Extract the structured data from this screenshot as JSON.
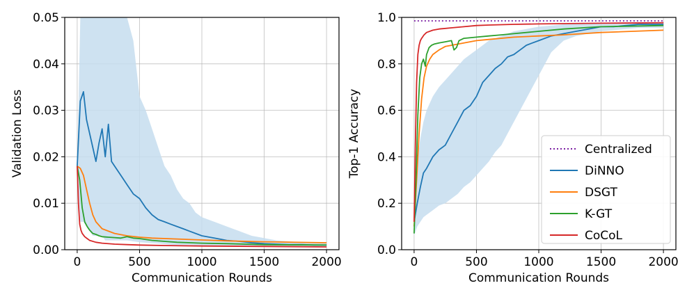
{
  "chart_data": [
    {
      "type": "line",
      "xlabel": "Communication Rounds",
      "ylabel": "Validation Loss",
      "xlim": [
        -100,
        2100
      ],
      "ylim": [
        0,
        0.05
      ],
      "xticks": [
        0,
        500,
        1000,
        1500,
        2000
      ],
      "xtick_labels": [
        "0",
        "500",
        "1000",
        "1500",
        "2000"
      ],
      "yticks": [
        0,
        0.01,
        0.02,
        0.03,
        0.04,
        0.05
      ],
      "ytick_labels": [
        "0.00",
        "0.01",
        "0.02",
        "0.03",
        "0.04",
        "0.05"
      ],
      "grid": true,
      "series": [
        {
          "name": "DiNNO",
          "color": "#1f77b4",
          "x": [
            0,
            25,
            50,
            75,
            100,
            125,
            150,
            175,
            200,
            225,
            250,
            275,
            300,
            350,
            400,
            450,
            500,
            550,
            600,
            650,
            700,
            750,
            800,
            850,
            900,
            950,
            1000,
            1100,
            1200,
            1300,
            1400,
            1500,
            1600,
            1700,
            1800,
            1900,
            2000
          ],
          "y": [
            0.018,
            0.032,
            0.034,
            0.028,
            0.025,
            0.022,
            0.019,
            0.023,
            0.026,
            0.02,
            0.027,
            0.019,
            0.018,
            0.016,
            0.014,
            0.012,
            0.011,
            0.009,
            0.0075,
            0.0065,
            0.006,
            0.0055,
            0.005,
            0.0045,
            0.004,
            0.0035,
            0.003,
            0.0025,
            0.002,
            0.0018,
            0.0015,
            0.0013,
            0.0012,
            0.0011,
            0.0011,
            0.001,
            0.001
          ],
          "band_upper": [
            0.018,
            0.05,
            0.05,
            0.05,
            0.05,
            0.05,
            0.05,
            0.05,
            0.05,
            0.05,
            0.05,
            0.05,
            0.05,
            0.05,
            0.05,
            0.045,
            0.033,
            0.03,
            0.026,
            0.022,
            0.018,
            0.016,
            0.013,
            0.011,
            0.01,
            0.008,
            0.007,
            0.006,
            0.005,
            0.004,
            0.003,
            0.0025,
            0.002,
            0.0018,
            0.0016,
            0.0015,
            0.0015
          ],
          "band_lower": [
            0.018,
            0.006,
            0.006,
            0.005,
            0.004,
            0.003,
            0.003,
            0.003,
            0.003,
            0.002,
            0.002,
            0.002,
            0.002,
            0.002,
            0.002,
            0.0018,
            0.0016,
            0.0015,
            0.0014,
            0.0013,
            0.0012,
            0.0011,
            0.001,
            0.001,
            0.001,
            0.0009,
            0.0009,
            0.0008,
            0.0008,
            0.0008,
            0.0007,
            0.0007,
            0.0007,
            0.0007,
            0.0007,
            0.0007,
            0.0007
          ]
        },
        {
          "name": "DSGT",
          "color": "#ff7f0e",
          "x": [
            0,
            25,
            50,
            75,
            100,
            125,
            150,
            200,
            300,
            400,
            500,
            600,
            800,
            1000,
            1200,
            1500,
            2000
          ],
          "y": [
            0.018,
            0.0175,
            0.016,
            0.013,
            0.01,
            0.0075,
            0.006,
            0.0045,
            0.0035,
            0.003,
            0.0027,
            0.0025,
            0.0023,
            0.0021,
            0.0019,
            0.0017,
            0.0015
          ]
        },
        {
          "name": "K-GT",
          "color": "#2ca02c",
          "x": [
            0,
            20,
            40,
            60,
            80,
            100,
            125,
            150,
            175,
            200,
            250,
            300,
            350,
            400,
            450,
            500,
            600,
            700,
            800,
            1000,
            1200,
            1500,
            2000
          ],
          "y": [
            0.018,
            0.015,
            0.009,
            0.006,
            0.005,
            0.0042,
            0.0035,
            0.0033,
            0.003,
            0.0028,
            0.0027,
            0.0026,
            0.0025,
            0.0028,
            0.0025,
            0.0024,
            0.002,
            0.0018,
            0.0016,
            0.0014,
            0.0013,
            0.0011,
            0.001
          ]
        },
        {
          "name": "CoCoL",
          "color": "#d62728",
          "x": [
            0,
            10,
            20,
            30,
            40,
            60,
            80,
            100,
            150,
            200,
            300,
            400,
            500,
            700,
            1000,
            1500,
            2000
          ],
          "y": [
            0.018,
            0.01,
            0.0055,
            0.0042,
            0.0035,
            0.0028,
            0.0024,
            0.002,
            0.0016,
            0.0014,
            0.0012,
            0.0011,
            0.001,
            0.0009,
            0.0008,
            0.0007,
            0.0006
          ]
        }
      ]
    },
    {
      "type": "line",
      "xlabel": "Communication Rounds",
      "ylabel": "Top-1 Accuracy",
      "xlim": [
        -100,
        2100
      ],
      "ylim": [
        0,
        1.0
      ],
      "xticks": [
        0,
        500,
        1000,
        1500,
        2000
      ],
      "xtick_labels": [
        "0",
        "500",
        "1000",
        "1500",
        "2000"
      ],
      "yticks": [
        0,
        0.2,
        0.4,
        0.6,
        0.8,
        1.0
      ],
      "ytick_labels": [
        "0.0",
        "0.2",
        "0.4",
        "0.6",
        "0.8",
        "1.0"
      ],
      "grid": true,
      "legend_position": "lower-right",
      "series": [
        {
          "name": "Centralized",
          "color": "#7b1fa2",
          "dashed": true,
          "x": [
            0,
            2000
          ],
          "y": [
            0.985,
            0.985
          ]
        },
        {
          "name": "DiNNO",
          "color": "#1f77b4",
          "x": [
            0,
            25,
            50,
            75,
            100,
            150,
            200,
            250,
            300,
            350,
            400,
            450,
            500,
            550,
            600,
            650,
            700,
            750,
            800,
            850,
            900,
            950,
            1000,
            1100,
            1200,
            1300,
            1400,
            1500,
            1600,
            1700,
            1800,
            1900,
            2000
          ],
          "y": [
            0.12,
            0.2,
            0.27,
            0.33,
            0.35,
            0.4,
            0.43,
            0.45,
            0.5,
            0.55,
            0.6,
            0.62,
            0.66,
            0.72,
            0.75,
            0.78,
            0.8,
            0.83,
            0.84,
            0.86,
            0.88,
            0.89,
            0.9,
            0.92,
            0.93,
            0.94,
            0.95,
            0.96,
            0.96,
            0.965,
            0.97,
            0.97,
            0.97
          ],
          "band_upper": [
            0.15,
            0.38,
            0.48,
            0.55,
            0.6,
            0.66,
            0.7,
            0.73,
            0.76,
            0.79,
            0.82,
            0.84,
            0.86,
            0.88,
            0.9,
            0.91,
            0.92,
            0.93,
            0.94,
            0.945,
            0.95,
            0.955,
            0.96,
            0.965,
            0.97,
            0.972,
            0.975,
            0.975,
            0.975,
            0.975,
            0.975,
            0.975,
            0.975
          ],
          "band_lower": [
            0.06,
            0.1,
            0.12,
            0.14,
            0.15,
            0.17,
            0.19,
            0.2,
            0.22,
            0.24,
            0.27,
            0.29,
            0.32,
            0.35,
            0.38,
            0.42,
            0.45,
            0.5,
            0.55,
            0.6,
            0.65,
            0.7,
            0.75,
            0.85,
            0.9,
            0.92,
            0.93,
            0.94,
            0.945,
            0.95,
            0.955,
            0.955,
            0.955
          ]
        },
        {
          "name": "DSGT",
          "color": "#ff7f0e",
          "x": [
            0,
            20,
            40,
            60,
            80,
            100,
            125,
            150,
            200,
            250,
            300,
            400,
            500,
            600,
            800,
            1000,
            1200,
            1500,
            2000
          ],
          "y": [
            0.1,
            0.3,
            0.5,
            0.65,
            0.74,
            0.79,
            0.82,
            0.84,
            0.86,
            0.875,
            0.88,
            0.89,
            0.9,
            0.905,
            0.915,
            0.92,
            0.925,
            0.935,
            0.945
          ]
        },
        {
          "name": "K-GT",
          "color": "#2ca02c",
          "x": [
            0,
            15,
            30,
            45,
            60,
            75,
            90,
            100,
            120,
            140,
            160,
            200,
            250,
            300,
            320,
            340,
            360,
            400,
            500,
            600,
            700,
            800,
            1000,
            1200,
            1500,
            2000
          ],
          "y": [
            0.07,
            0.3,
            0.58,
            0.74,
            0.8,
            0.82,
            0.79,
            0.84,
            0.87,
            0.88,
            0.885,
            0.89,
            0.895,
            0.9,
            0.86,
            0.87,
            0.9,
            0.91,
            0.915,
            0.92,
            0.925,
            0.93,
            0.94,
            0.95,
            0.96,
            0.965
          ]
        },
        {
          "name": "CoCoL",
          "color": "#d62728",
          "x": [
            0,
            10,
            20,
            30,
            40,
            50,
            60,
            80,
            100,
            150,
            200,
            300,
            400,
            500,
            600,
            800,
            1000,
            1500,
            2000
          ],
          "y": [
            0.12,
            0.45,
            0.72,
            0.84,
            0.88,
            0.9,
            0.91,
            0.925,
            0.935,
            0.945,
            0.95,
            0.955,
            0.96,
            0.965,
            0.967,
            0.97,
            0.972,
            0.975,
            0.977
          ]
        }
      ]
    }
  ]
}
